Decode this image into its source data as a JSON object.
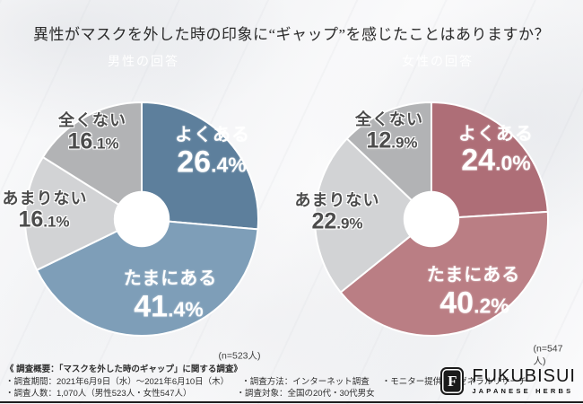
{
  "title": "異性がマスクを外した時の印象に“ギャップ”を感じたことはありますか？",
  "colors": {
    "male_accent": "#526f7d",
    "female_accent": "#9c7272",
    "male_slice_dark": "#5d7f9c",
    "male_slice_light": "#7e9eb8",
    "female_slice_dark": "#ae6e77",
    "female_slice_light": "#ba7e84",
    "gray_light": "#d2d3d5",
    "gray_medium": "#b2b3b5"
  },
  "chart_data": [
    {
      "type": "pie",
      "title": "男性の回答",
      "n_label": "(n=523人)",
      "donut_hole_ratio": 0.24,
      "start_angle_deg": 0,
      "direction": "clockwise",
      "legend_position": "labels-on-chart",
      "slices": [
        {
          "label": "よくある",
          "pct": "26.4%",
          "value": 26.4,
          "color": "#5d7f9c",
          "placement": "inside"
        },
        {
          "label": "たまにある",
          "pct": "41.4%",
          "value": 41.4,
          "color": "#7e9eb8",
          "placement": "inside"
        },
        {
          "label": "あまりない",
          "pct": "16.1%",
          "value": 16.1,
          "color": "#d2d3d5",
          "placement": "outside"
        },
        {
          "label": "全くない",
          "pct": "16.1%",
          "value": 16.1,
          "color": "#b2b3b5",
          "placement": "outside"
        }
      ]
    },
    {
      "type": "pie",
      "title": "女性の回答",
      "n_label": "(n=547人)",
      "donut_hole_ratio": 0.24,
      "start_angle_deg": 0,
      "direction": "clockwise",
      "legend_position": "labels-on-chart",
      "slices": [
        {
          "label": "よくある",
          "pct": "24.0%",
          "value": 24.0,
          "color": "#ae6e77",
          "placement": "inside"
        },
        {
          "label": "たまにある",
          "pct": "40.2%",
          "value": 40.2,
          "color": "#ba7e84",
          "placement": "inside"
        },
        {
          "label": "あまりない",
          "pct": "22.9%",
          "value": 22.9,
          "color": "#d2d3d5",
          "placement": "outside"
        },
        {
          "label": "全くない",
          "pct": "12.9%",
          "value": 12.9,
          "color": "#b2b3b5",
          "placement": "outside"
        }
      ]
    }
  ],
  "footer": {
    "heading": "《 調査概要：「マスクを外した時のギャップ」に関する調査》",
    "line2": [
      "・調査期間：2021年6月9日（水）～2021年6月10日（木）",
      "・調査方法：インターネット調査",
      "・モニター提供元：ゼネラルリサーチ"
    ],
    "line3": [
      "・調査人数：1,070人（男性523人・女性547人）",
      "・調査対象：全国の20代・30代男女"
    ]
  },
  "logo": {
    "mark": "F",
    "name": "FUKUBISUI",
    "tagline": "JAPANESE HERBS"
  }
}
